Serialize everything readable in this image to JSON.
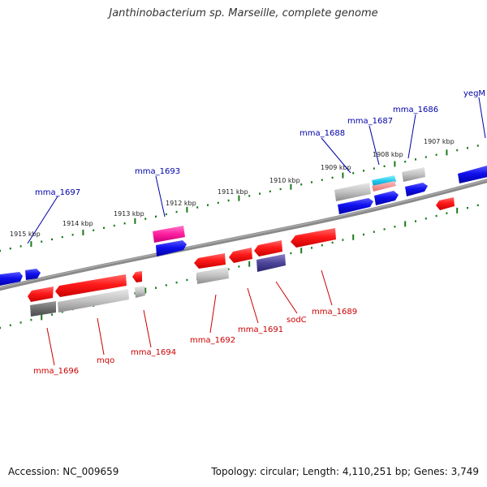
{
  "title": "Janthinobacterium sp. Marseille, complete genome",
  "accession": "Accession: NC_009659",
  "summary": "Topology: circular; Length: 4,110,251 bp; Genes: 3,749",
  "colors": {
    "forward_label": "#0000aa",
    "reverse_label": "#cc0000",
    "tick": "#1a7a1a",
    "backbone": "#808080"
  },
  "kbp_labels": [
    "1915 kbp",
    "1914 kbp",
    "1913 kbp",
    "1912 kbp",
    "1911 kbp",
    "1910 kbp",
    "1909 kbp",
    "1908 kbp",
    "1907 kbp"
  ],
  "forward_genes": [
    "mma_1697",
    "mma_1693",
    "mma_1688",
    "mma_1687",
    "mma_1686",
    "yegM"
  ],
  "reverse_genes": [
    "mma_1696",
    "mqo",
    "mma_1694",
    "mma_1692",
    "mma_1691",
    "sodC",
    "mma_1689"
  ]
}
